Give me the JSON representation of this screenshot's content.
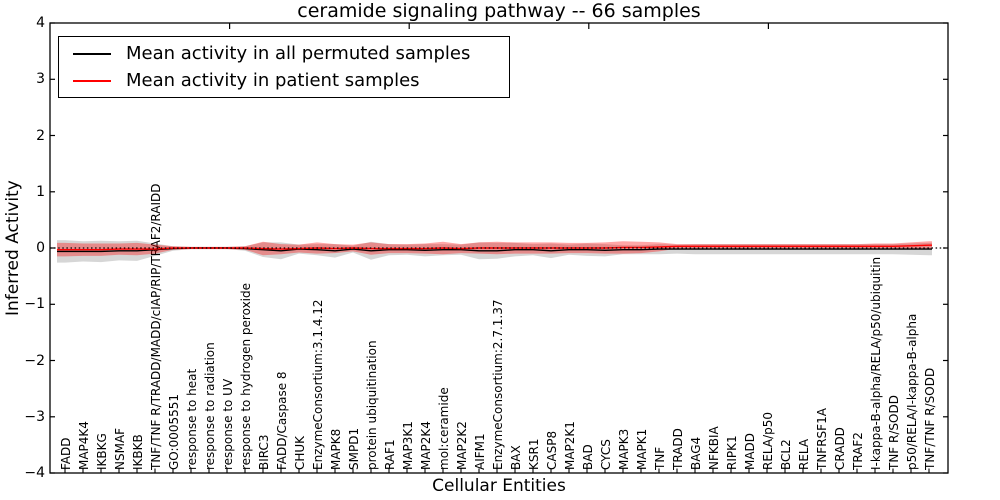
{
  "figure": {
    "background": "#ffffff",
    "frame_color": "#000000"
  },
  "legend": {
    "position": "upper left",
    "items": [
      {
        "label": "Mean activity in all permuted samples",
        "color": "#000000"
      },
      {
        "label": "Mean activity in patient samples",
        "color": "#ff0000"
      }
    ]
  },
  "chart_data": {
    "type": "line",
    "title": "ceramide signaling pathway -- 66 samples",
    "xlabel": "Cellular Entities",
    "ylabel": "Inferred Activity",
    "ylim": [
      -4,
      4
    ],
    "xlim_units": [
      0,
      50
    ],
    "yticks": [
      4,
      3,
      2,
      1,
      0,
      -1,
      -2,
      -3,
      -4
    ],
    "top_axis_ticks": [
      10,
      20,
      30,
      40
    ],
    "grid": false,
    "zero_line_style": "dotted",
    "legend_position": "upper left",
    "categories": [
      "FADD",
      "MAP4K4",
      "IKBKG",
      "NSMAF",
      "IKBKB",
      "TNF/TNF R/TRADD/MADD/cIAP/RIP/TRAF2/RAIDD",
      "GO:0005551",
      "response to heat",
      "response to radiation",
      "response to UV",
      "response to hydrogen peroxide",
      "BIRC3",
      "FADD/Caspase 8",
      "CHUK",
      "EnzymeConsortium:3.1.4.12",
      "MAPK8",
      "SMPD1",
      "protein ubiquitination",
      "RAF1",
      "MAP3K1",
      "MAP2K4",
      "mol:ceramide",
      "MAP2K2",
      "AIFM1",
      "EnzymeConsortium:2.7.1.37",
      "BAX",
      "KSR1",
      "CASP8",
      "MAP2K1",
      "BAD",
      "CYCS",
      "MAPK3",
      "MAPK1",
      "TNF",
      "TRADD",
      "BAG4",
      "NFKBIA",
      "RIPK1",
      "MADD",
      "RELA/p50",
      "BCL2",
      "RELA",
      "TNFRSF1A",
      "CRADD",
      "TRAF2",
      "I-kappa-B-alpha/RELA/p50/ubiquitin",
      "TNF R/SODD",
      "p50/RELA/I-kappa-B-alpha",
      "TNF/TNF R/SODD"
    ],
    "series": [
      {
        "name": "Mean activity in all permuted samples",
        "color": "#000000",
        "band_color": "rgba(0,0,0,0.16)",
        "band_name": "permuted-std-band",
        "mean": [
          -0.06,
          -0.06,
          -0.06,
          -0.05,
          -0.05,
          -0.03,
          -0.01,
          0,
          0,
          0,
          -0.01,
          -0.03,
          -0.05,
          -0.02,
          -0.03,
          -0.05,
          -0.02,
          -0.05,
          -0.03,
          -0.03,
          -0.04,
          -0.03,
          -0.03,
          -0.05,
          -0.05,
          -0.03,
          -0.03,
          -0.05,
          -0.03,
          -0.03,
          -0.04,
          -0.03,
          -0.03,
          -0.02,
          -0.02,
          -0.02,
          -0.02,
          -0.02,
          -0.02,
          -0.02,
          -0.02,
          -0.02,
          -0.02,
          -0.02,
          -0.02,
          -0.02,
          -0.02,
          -0.02,
          -0.02
        ],
        "std": [
          0.2,
          0.18,
          0.19,
          0.17,
          0.18,
          0.11,
          0.04,
          0.02,
          0.02,
          0.02,
          0.04,
          0.13,
          0.15,
          0.08,
          0.1,
          0.12,
          0.06,
          0.16,
          0.1,
          0.09,
          0.11,
          0.1,
          0.09,
          0.15,
          0.14,
          0.12,
          0.1,
          0.13,
          0.09,
          0.11,
          0.11,
          0.08,
          0.08,
          0.09,
          0.08,
          0.09,
          0.09,
          0.09,
          0.09,
          0.09,
          0.09,
          0.09,
          0.09,
          0.09,
          0.09,
          0.09,
          0.09,
          0.1,
          0.11
        ]
      },
      {
        "name": "Mean activity in patient samples",
        "color": "#ff0000",
        "band_color": "rgba(255,0,0,0.35)",
        "band_name": "patient-std-band",
        "mean": [
          -0.03,
          -0.03,
          -0.03,
          -0.02,
          -0.02,
          -0.02,
          0,
          0,
          0,
          0,
          0,
          -0.01,
          -0.02,
          -0.01,
          0,
          -0.01,
          0,
          -0.01,
          -0.01,
          -0.01,
          -0.01,
          0,
          -0.01,
          0,
          0,
          0,
          0,
          0,
          0,
          0,
          0,
          0.01,
          0.01,
          0.02,
          0.03,
          0.03,
          0.03,
          0.03,
          0.03,
          0.03,
          0.03,
          0.03,
          0.03,
          0.03,
          0.03,
          0.03,
          0.03,
          0.04,
          0.05
        ],
        "std": [
          0.12,
          0.11,
          0.11,
          0.1,
          0.11,
          0.08,
          0.03,
          0.02,
          0.02,
          0.02,
          0.03,
          0.12,
          0.09,
          0.07,
          0.1,
          0.08,
          0.06,
          0.11,
          0.08,
          0.08,
          0.09,
          0.11,
          0.08,
          0.1,
          0.11,
          0.1,
          0.1,
          0.1,
          0.09,
          0.09,
          0.1,
          0.11,
          0.1,
          0.08,
          0.04,
          0.04,
          0.04,
          0.04,
          0.04,
          0.04,
          0.04,
          0.04,
          0.04,
          0.04,
          0.04,
          0.05,
          0.05,
          0.06,
          0.07
        ]
      }
    ]
  }
}
